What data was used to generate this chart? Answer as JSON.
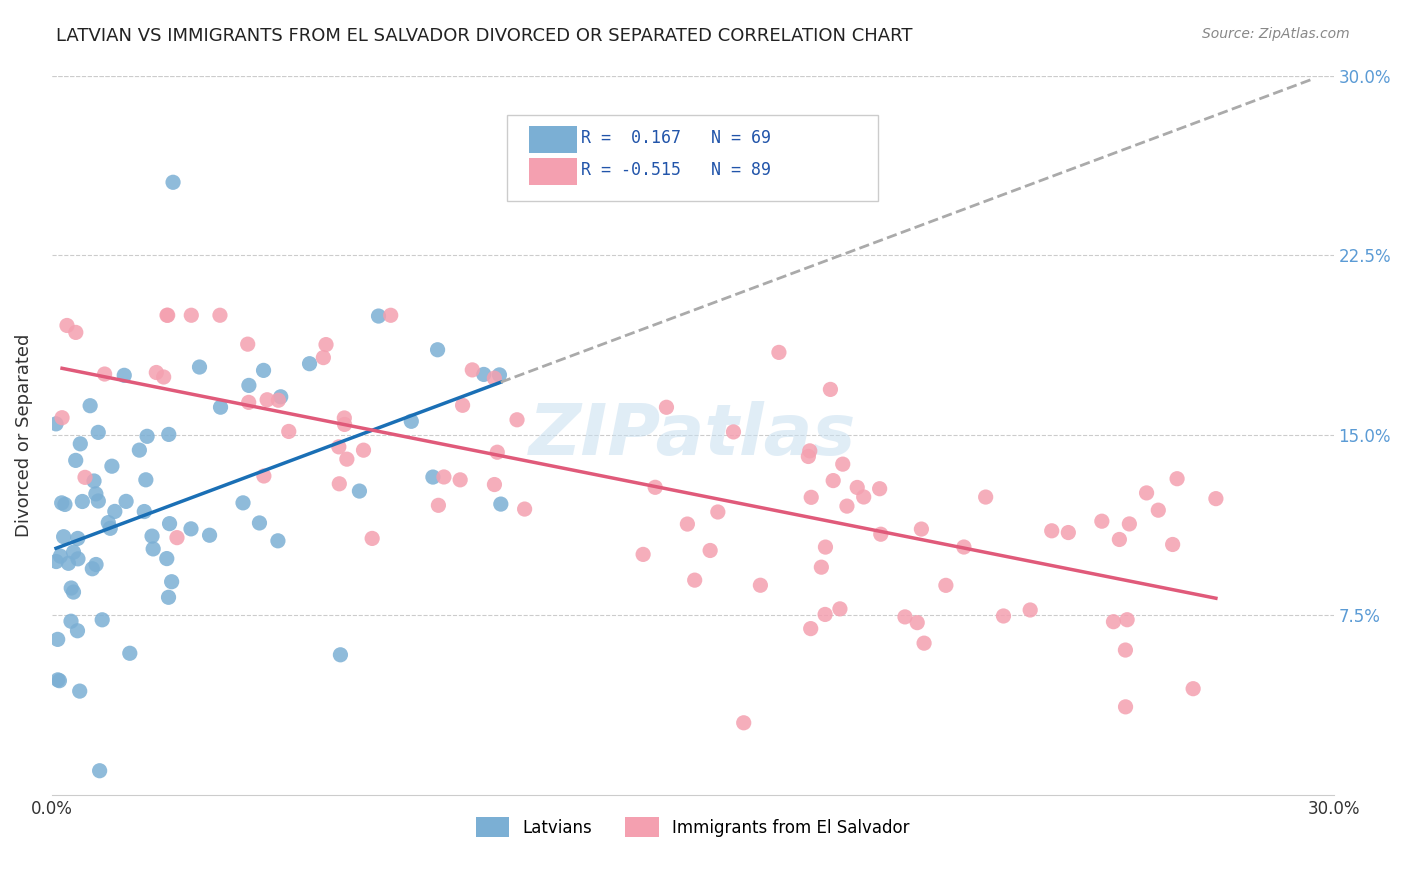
{
  "title": "LATVIAN VS IMMIGRANTS FROM EL SALVADOR DIVORCED OR SEPARATED CORRELATION CHART",
  "source_text": "Source: ZipAtlas.com",
  "xlabel": "",
  "ylabel": "Divorced or Separated",
  "xlim": [
    0.0,
    0.3
  ],
  "ylim": [
    0.0,
    0.3
  ],
  "xtick_labels": [
    "0.0%",
    "30.0%"
  ],
  "ytick_labels": [
    "7.5%",
    "15.0%",
    "22.5%",
    "30.0%"
  ],
  "ytick_positions": [
    0.075,
    0.15,
    0.225,
    0.3
  ],
  "right_ytick_labels": [
    "7.5%",
    "15.0%",
    "22.5%",
    "30.0%"
  ],
  "grid_color": "#cccccc",
  "background_color": "#ffffff",
  "watermark_text": "ZIPatlas",
  "legend_r1": "R =  0.167",
  "legend_n1": "N = 69",
  "legend_r2": "R = -0.515",
  "legend_n2": "N = 89",
  "latvian_color": "#7bafd4",
  "elsalvador_color": "#f4a0b0",
  "trendline1_color": "#1a6fb5",
  "trendline2_color": "#e05a7a",
  "trendline_ext_color": "#aaaaaa",
  "R1": 0.167,
  "N1": 69,
  "R2": -0.515,
  "N2": 89,
  "seed": 42
}
